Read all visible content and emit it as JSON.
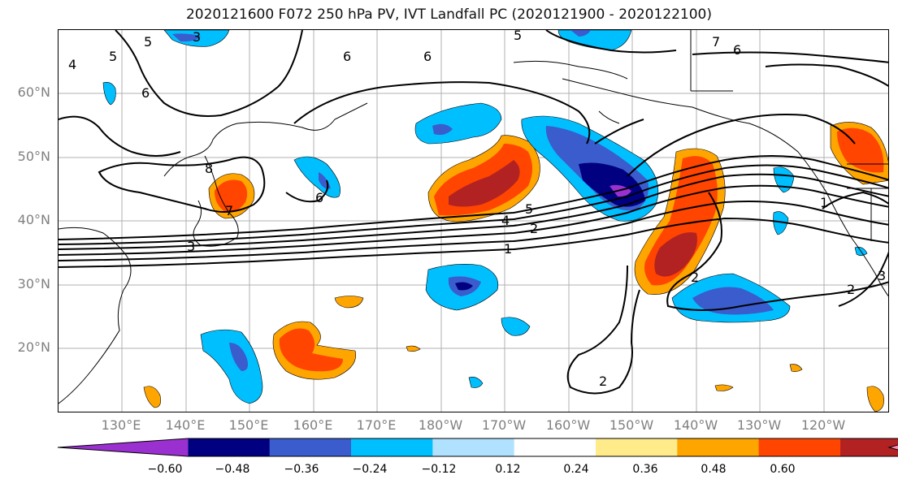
{
  "title": "2020121600 F072 250 hPa PV, IVT Landfall PC (2020121900 - 2020122100)",
  "lat_labels": [
    "60°N",
    "50°N",
    "40°N",
    "30°N",
    "20°N"
  ],
  "lon_labels": [
    "130°E",
    "140°E",
    "150°E",
    "160°E",
    "170°E",
    "180°W",
    "170°W",
    "160°W",
    "150°W",
    "140°W",
    "130°W",
    "120°W"
  ],
  "colorbar": {
    "colors": [
      "#9b30d0",
      "#000080",
      "#3a5ccc",
      "#00bfff",
      "#b0e2ff",
      "#ffffff",
      "#ffeb8a",
      "#ffa500",
      "#ff4500",
      "#b22222",
      "#ff87b0"
    ],
    "ticks": [
      "−0.60",
      "−0.48",
      "−0.36",
      "−0.24",
      "−0.12",
      "0.12",
      "0.24",
      "0.36",
      "0.48",
      "0.60"
    ]
  },
  "contour_labels": [
    "1",
    "2",
    "3",
    "4",
    "5",
    "6",
    "7",
    "8"
  ]
}
